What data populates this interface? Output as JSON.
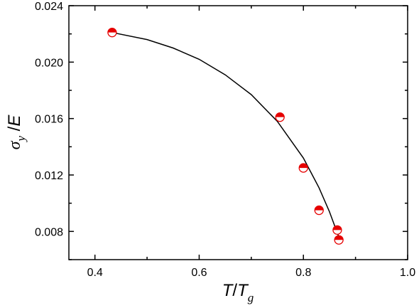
{
  "chart_data": {
    "type": "scatter",
    "xlim": [
      0.35,
      1.0
    ],
    "ylim": [
      0.006,
      0.024
    ],
    "xticks": [
      "0.4",
      "0.6",
      "0.8",
      "1.0"
    ],
    "yticks": [
      "0.008",
      "0.012",
      "0.016",
      "0.020",
      "0.024"
    ],
    "xlabel": {
      "main": "T",
      "sep": "/",
      "var": "T",
      "sub": "g"
    },
    "ylabel": {
      "main": "σ",
      "sub": "y",
      "sep": " /",
      "var": "E"
    },
    "marker_color": "#e60000",
    "series": [
      {
        "type": "scatter",
        "x": [
          0.433,
          0.755,
          0.8,
          0.83,
          0.865,
          0.868
        ],
        "y": [
          0.0221,
          0.0161,
          0.0125,
          0.0095,
          0.0081,
          0.0074
        ]
      },
      {
        "type": "line",
        "x": [
          0.433,
          0.5,
          0.55,
          0.6,
          0.65,
          0.7,
          0.75,
          0.8,
          0.83,
          0.85,
          0.87
        ],
        "y": [
          0.0221,
          0.0216,
          0.021,
          0.0202,
          0.0191,
          0.0177,
          0.0158,
          0.0132,
          0.0111,
          0.0094,
          0.0074
        ]
      }
    ],
    "grid": false,
    "legend": "none"
  }
}
